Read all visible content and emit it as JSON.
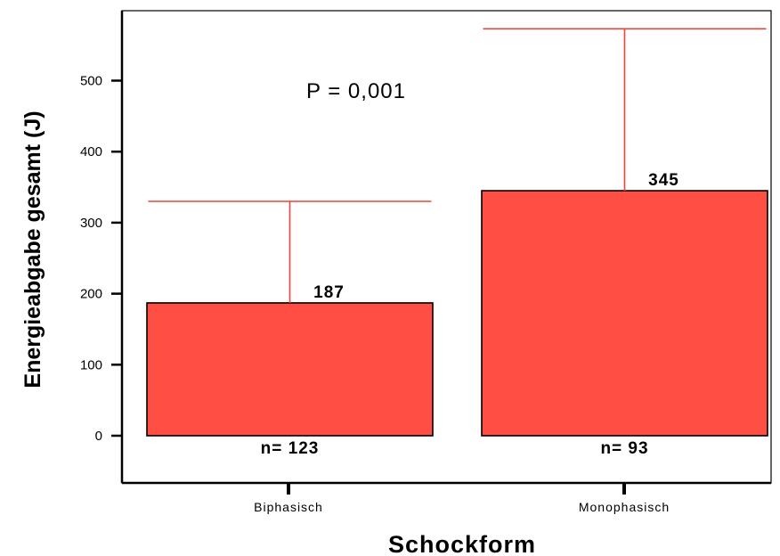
{
  "chart_data": {
    "type": "bar",
    "xlabel": "Schockform",
    "ylabel": "Energieabgabe gesamt (J)",
    "annotation": "P = 0,001",
    "categories": [
      "Biphasisch",
      "Monophasisch"
    ],
    "values": [
      187,
      345
    ],
    "value_labels": [
      "187",
      "345"
    ],
    "error_upper": [
      330,
      573
    ],
    "n_labels": [
      "n= 123",
      "n= 93"
    ],
    "yticks": [
      0,
      100,
      200,
      300,
      400,
      500
    ],
    "ylim": [
      -66,
      600
    ],
    "grid": false,
    "bar_color": "#ff4f44",
    "error_color": "#ee4438"
  }
}
